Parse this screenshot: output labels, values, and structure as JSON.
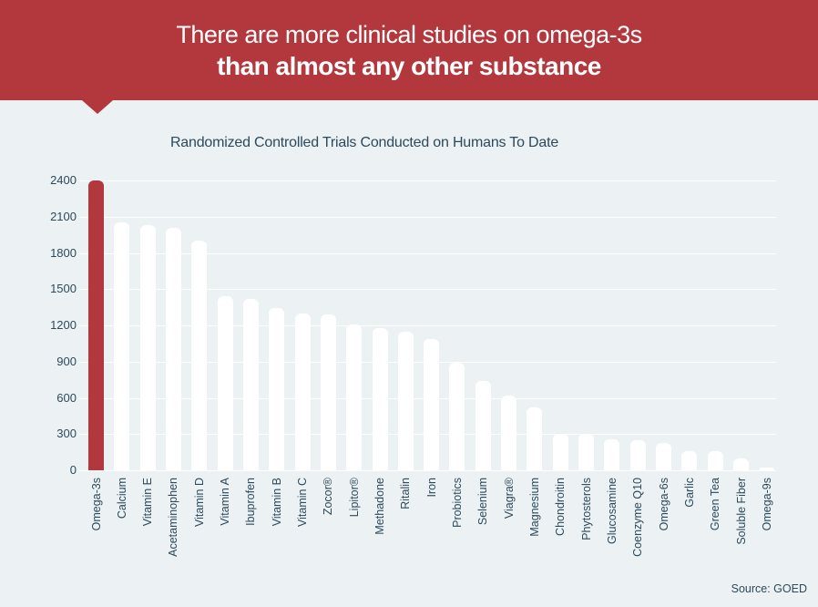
{
  "header": {
    "line1": "There are more clinical studies on omega-3s",
    "line2": "than almost any other substance"
  },
  "chart_data": {
    "type": "bar",
    "title": "Randomized Controlled Trials Conducted on Humans To Date",
    "categories": [
      "Omega-3s",
      "Calcium",
      "Vitamin E",
      "Acetaminophen",
      "Vitamin D",
      "Vitamin A",
      "Ibuprofen",
      "Vitamin B",
      "Vitamin C",
      "Zocor®",
      "Lipitor®",
      "Methadone",
      "Ritalin",
      "Iron",
      "Probiotics",
      "Selenium",
      "Viagra®",
      "Magnesium",
      "Chondroitin",
      "Phytosterols",
      "Glucosamine",
      "Coenzyme Q10",
      "Omega-6s",
      "Garlic",
      "Green Tea",
      "Soluble Fiber",
      "Omega-9s"
    ],
    "values": [
      2400,
      2050,
      2030,
      2010,
      1900,
      1440,
      1420,
      1340,
      1300,
      1290,
      1210,
      1175,
      1150,
      1090,
      890,
      740,
      620,
      520,
      300,
      300,
      260,
      250,
      230,
      160,
      160,
      100,
      20
    ],
    "highlight_category": "Omega-3s",
    "xlabel": "",
    "ylabel": "",
    "ylim": [
      0,
      2400
    ],
    "yticks": [
      0,
      300,
      600,
      900,
      1200,
      1500,
      1800,
      2100,
      2400
    ],
    "grid": true,
    "legend_position": "none",
    "source": "Source: GOED"
  },
  "colors": {
    "accent_red": "#b2383e",
    "bar_default": "#ffffff",
    "text_navy": "#2b4a5c",
    "background": "#ecf1f3"
  }
}
